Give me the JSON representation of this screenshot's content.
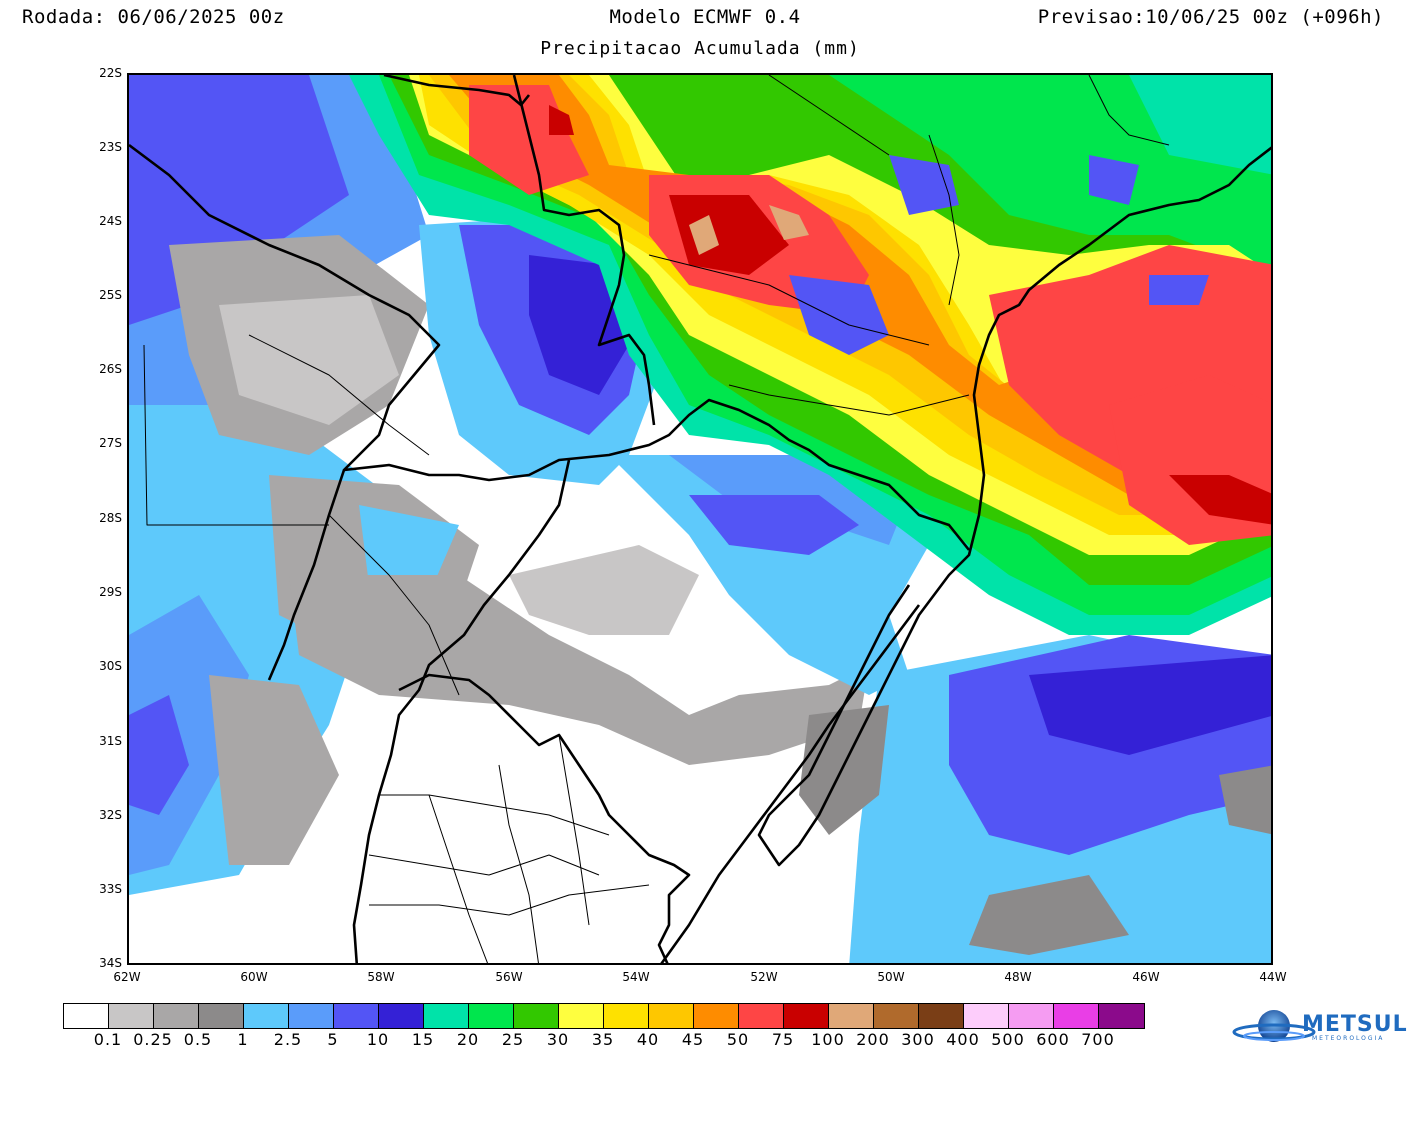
{
  "header": {
    "run_label": "Rodada: 06/06/2025 00z",
    "model_label": "Modelo ECMWF 0.4",
    "forecast_label": "Previsao:10/06/25 00z (+096h)",
    "subtitle": "Precipitacao Acumulada (mm)"
  },
  "map": {
    "lat_ticks": [
      "22S",
      "23S",
      "24S",
      "25S",
      "26S",
      "27S",
      "28S",
      "29S",
      "30S",
      "31S",
      "32S",
      "33S",
      "34S"
    ],
    "lon_ticks": [
      "62W",
      "60W",
      "58W",
      "56W",
      "54W",
      "52W",
      "50W",
      "48W",
      "46W",
      "44W"
    ],
    "extent": {
      "lon": [
        -62,
        -44
      ],
      "lat": [
        -34,
        -22
      ]
    }
  },
  "legend": {
    "labels": [
      "0.1",
      "0.25",
      "0.5",
      "1",
      "2.5",
      "5",
      "10",
      "15",
      "20",
      "25",
      "30",
      "35",
      "40",
      "45",
      "50",
      "75",
      "100",
      "200",
      "300",
      "400",
      "500",
      "600",
      "700"
    ],
    "colors": [
      "#ffffff",
      "#c8c6c6",
      "#a9a7a7",
      "#8c8a8a",
      "#5ec9fb",
      "#5a9cfa",
      "#5355f5",
      "#3421d6",
      "#00e3a9",
      "#00e64d",
      "#32c800",
      "#fefe3f",
      "#fee100",
      "#fec700",
      "#fe8c00",
      "#fe4545",
      "#c90000",
      "#e0a878",
      "#b06a2c",
      "#7a3e16",
      "#fdcdfb",
      "#f59cf2",
      "#e93ee6",
      "#8b0a8b"
    ]
  },
  "logo": {
    "name": "METSUL",
    "sub": "METEOROLOGIA"
  }
}
